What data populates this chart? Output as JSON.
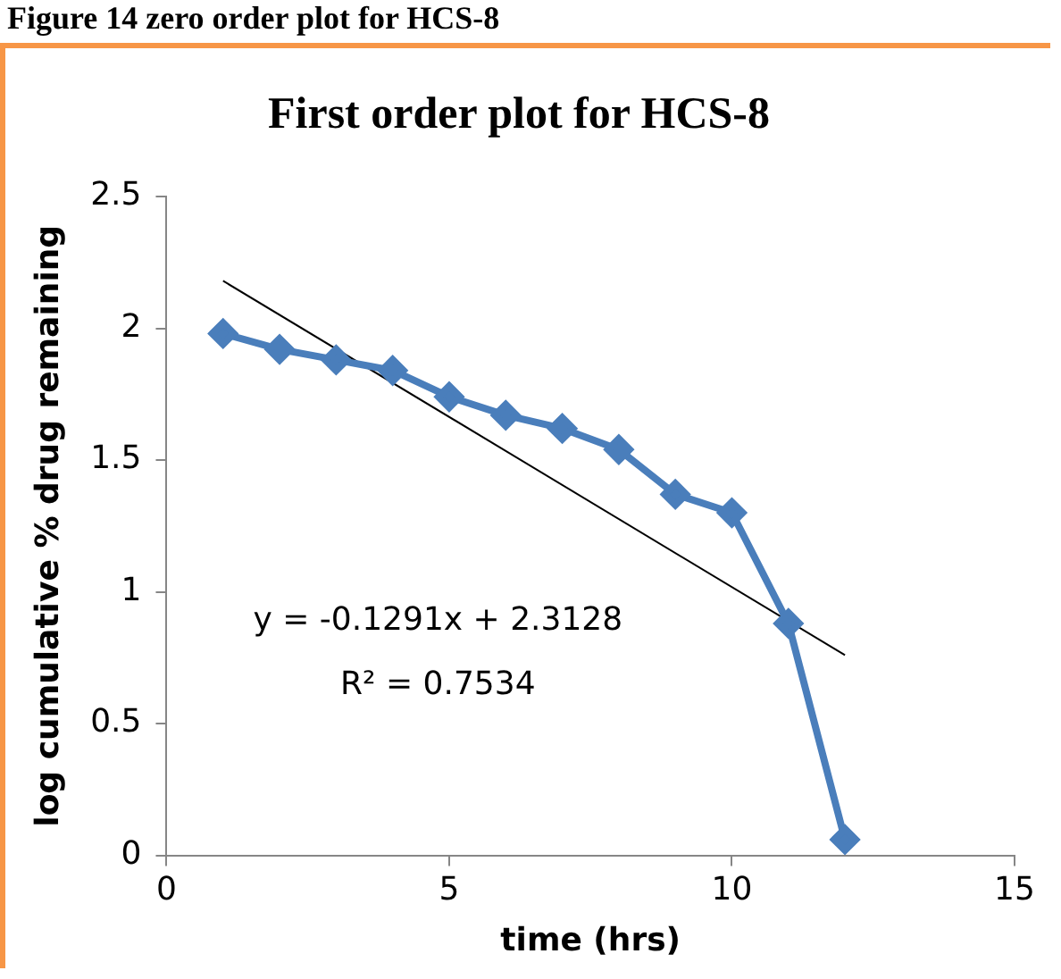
{
  "chart_data": {
    "type": "line",
    "title": "First order plot for HCS-8",
    "xlabel": "time (hrs)",
    "ylabel": "log cumulative % drug remaining",
    "x": [
      1,
      2,
      3,
      4,
      5,
      6,
      7,
      8,
      9,
      10,
      11,
      12
    ],
    "series": [
      {
        "color": "#4a7ebb",
        "values": [
          1.98,
          1.92,
          1.88,
          1.84,
          1.74,
          1.67,
          1.62,
          1.54,
          1.37,
          1.3,
          0.88,
          0.06
        ],
        "marker": "diamond"
      },
      {
        "type": "line",
        "color": "#000000",
        "x": [
          1,
          12
        ],
        "values": [
          2.18,
          0.76
        ],
        "marker": "none"
      }
    ],
    "xlim": [
      0,
      15
    ],
    "xticks": [
      0,
      5,
      10,
      15
    ],
    "ylim": [
      0,
      2.5
    ],
    "yticks": [
      0,
      0.5,
      1,
      1.5,
      2,
      2.5
    ],
    "grid": false,
    "legend": false,
    "annotations": [
      "Figure 14 zero order plot for HCS-8",
      "y = -0.1291x + 2.3128",
      "R² = 0.7534"
    ]
  }
}
